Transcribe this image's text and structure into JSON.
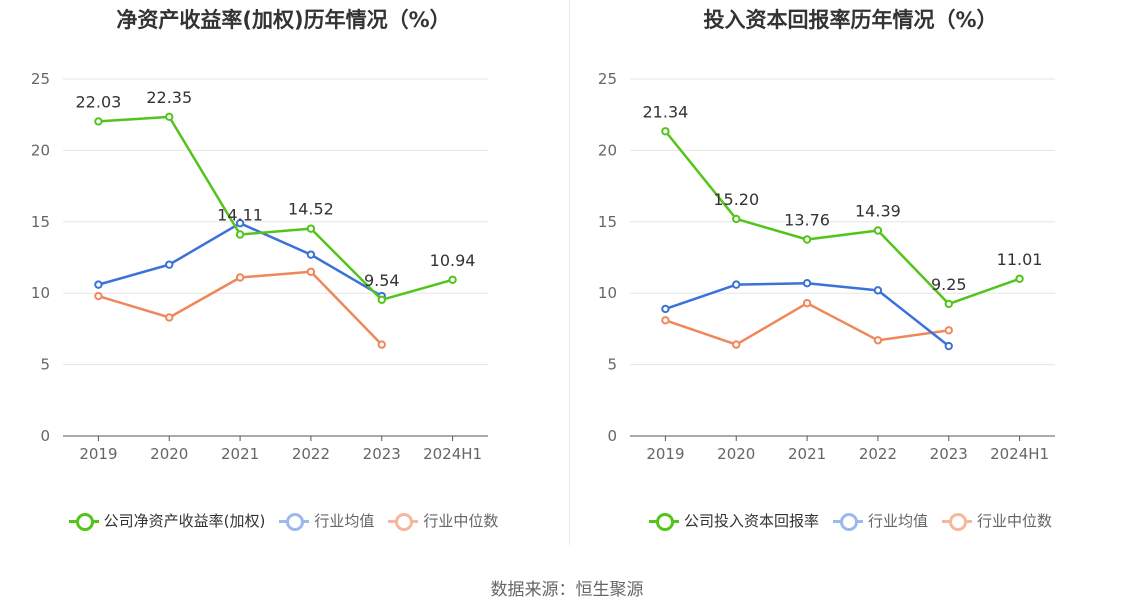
{
  "colors": {
    "company": "#52c41a",
    "avg": "#3a72d8",
    "median": "#f0875a",
    "grid": "#e6e6e6",
    "axis": "#666666"
  },
  "source": "数据来源：恒生聚源",
  "charts": [
    {
      "title": "净资产收益率(加权)历年情况（%）",
      "legend": [
        "公司净资产收益率(加权)",
        "行业均值",
        "行业中位数"
      ]
    },
    {
      "title": "投入资本回报率历年情况（%）",
      "legend": [
        "公司投入资本回报率",
        "行业均值",
        "行业中位数"
      ]
    }
  ],
  "chart_data": [
    {
      "type": "line",
      "title": "净资产收益率(加权)历年情况（%）",
      "categories": [
        "2019",
        "2020",
        "2021",
        "2022",
        "2023",
        "2024H1"
      ],
      "ylim": [
        0,
        25
      ],
      "yticks": [
        0,
        5,
        10,
        15,
        20,
        25
      ],
      "grid": true,
      "legend_position": "bottom",
      "series": [
        {
          "name": "公司净资产收益率(加权)",
          "values": [
            22.03,
            22.35,
            14.11,
            14.52,
            9.54,
            10.94
          ],
          "labels": [
            "22.03",
            "22.35",
            "14.11",
            "14.52",
            "9.54",
            "10.94"
          ]
        },
        {
          "name": "行业均值",
          "values": [
            10.6,
            12.0,
            14.9,
            12.7,
            9.8,
            null
          ]
        },
        {
          "name": "行业中位数",
          "values": [
            9.8,
            8.3,
            11.1,
            11.5,
            6.4,
            null
          ]
        }
      ]
    },
    {
      "type": "line",
      "title": "投入资本回报率历年情况（%）",
      "categories": [
        "2019",
        "2020",
        "2021",
        "2022",
        "2023",
        "2024H1"
      ],
      "ylim": [
        0,
        25
      ],
      "yticks": [
        0,
        5,
        10,
        15,
        20,
        25
      ],
      "grid": true,
      "legend_position": "bottom",
      "series": [
        {
          "name": "公司投入资本回报率",
          "values": [
            21.34,
            15.2,
            13.76,
            14.39,
            9.25,
            11.01
          ],
          "labels": [
            "21.34",
            "15.20",
            "13.76",
            "14.39",
            "9.25",
            "11.01"
          ]
        },
        {
          "name": "行业均值",
          "values": [
            8.9,
            10.6,
            10.7,
            10.2,
            6.3,
            null
          ]
        },
        {
          "name": "行业中位数",
          "values": [
            8.1,
            6.4,
            9.3,
            6.7,
            7.4,
            null
          ]
        }
      ]
    }
  ]
}
